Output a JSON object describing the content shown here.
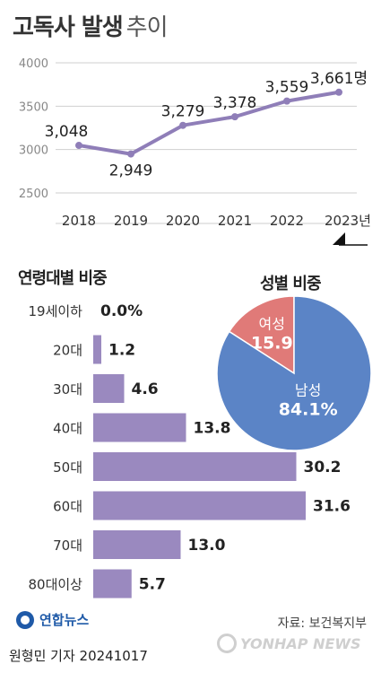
{
  "title": {
    "bold": "고독사 발생",
    "light": "추이"
  },
  "chart_data": [
    {
      "type": "line",
      "x": [
        "2018",
        "2019",
        "2020",
        "2021",
        "2022",
        "2023"
      ],
      "x_tick_labels": [
        "2018",
        "2019",
        "2020",
        "2021",
        "2022",
        "2023년"
      ],
      "values": [
        3048,
        2949,
        3279,
        3378,
        3559,
        3661
      ],
      "data_labels": [
        "3,048",
        "2,949",
        "3,279",
        "3,378",
        "3,559",
        "3,661명"
      ],
      "y_ticks": [
        "4000",
        "3500",
        "3000",
        "2500"
      ],
      "ylim": [
        2500,
        4000
      ],
      "grid": true,
      "color": "#8f7eb8"
    },
    {
      "type": "bar",
      "title": "연령대별 비중",
      "categories": [
        "19세이하",
        "20대",
        "30대",
        "40대",
        "50대",
        "60대",
        "70대",
        "80대이상"
      ],
      "values": [
        0.0,
        1.2,
        4.6,
        13.8,
        30.2,
        31.6,
        13.0,
        5.7
      ],
      "value_labels": [
        "0.0%",
        "1.2",
        "4.6",
        "13.8",
        "30.2",
        "31.6",
        "13.0",
        "5.7"
      ],
      "color": "#9a89bf"
    },
    {
      "type": "pie",
      "title": "성별 비중",
      "slices": [
        {
          "name": "여성",
          "value": 15.9,
          "label": "15.9",
          "color": "#e07a78"
        },
        {
          "name": "남성",
          "value": 84.1,
          "label": "84.1%",
          "color": "#5b84c6"
        }
      ]
    }
  ],
  "footer": {
    "logo": "연합뉴스",
    "source": "자료: 보건복지부",
    "credit": "원형민 기자  20241017",
    "watermark": "YONHAP NEWS"
  }
}
